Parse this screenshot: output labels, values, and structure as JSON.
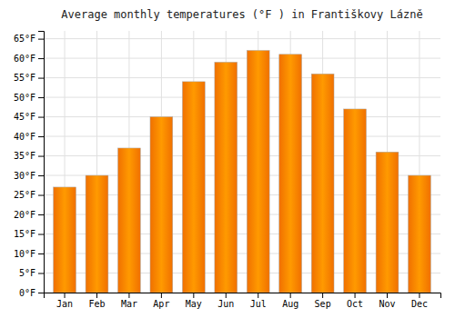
{
  "chart_data": {
    "type": "bar",
    "title": "Average monthly temperatures (°F ) in Františkovy Lázně",
    "categories": [
      "Jan",
      "Feb",
      "Mar",
      "Apr",
      "May",
      "Jun",
      "Jul",
      "Aug",
      "Sep",
      "Oct",
      "Nov",
      "Dec"
    ],
    "values": [
      27,
      30,
      37,
      45,
      54,
      59,
      62,
      61,
      56,
      47,
      36,
      30
    ],
    "color": "#F07000",
    "ylim": [
      0,
      67
    ],
    "yticks": [
      {
        "value": 0,
        "label": "0°F"
      },
      {
        "value": 5,
        "label": "5°F"
      },
      {
        "value": 10,
        "label": "10°F"
      },
      {
        "value": 15,
        "label": "15°F"
      },
      {
        "value": 20,
        "label": "20°F"
      },
      {
        "value": 25,
        "label": "25°F"
      },
      {
        "value": 30,
        "label": "30°F"
      },
      {
        "value": 35,
        "label": "35°F"
      },
      {
        "value": 40,
        "label": "40°F"
      },
      {
        "value": 45,
        "label": "45°F"
      },
      {
        "value": 50,
        "label": "50°F"
      },
      {
        "value": 55,
        "label": "55°F"
      },
      {
        "value": 60,
        "label": "60°F"
      },
      {
        "value": 65,
        "label": "65°F"
      }
    ],
    "grid": true
  }
}
